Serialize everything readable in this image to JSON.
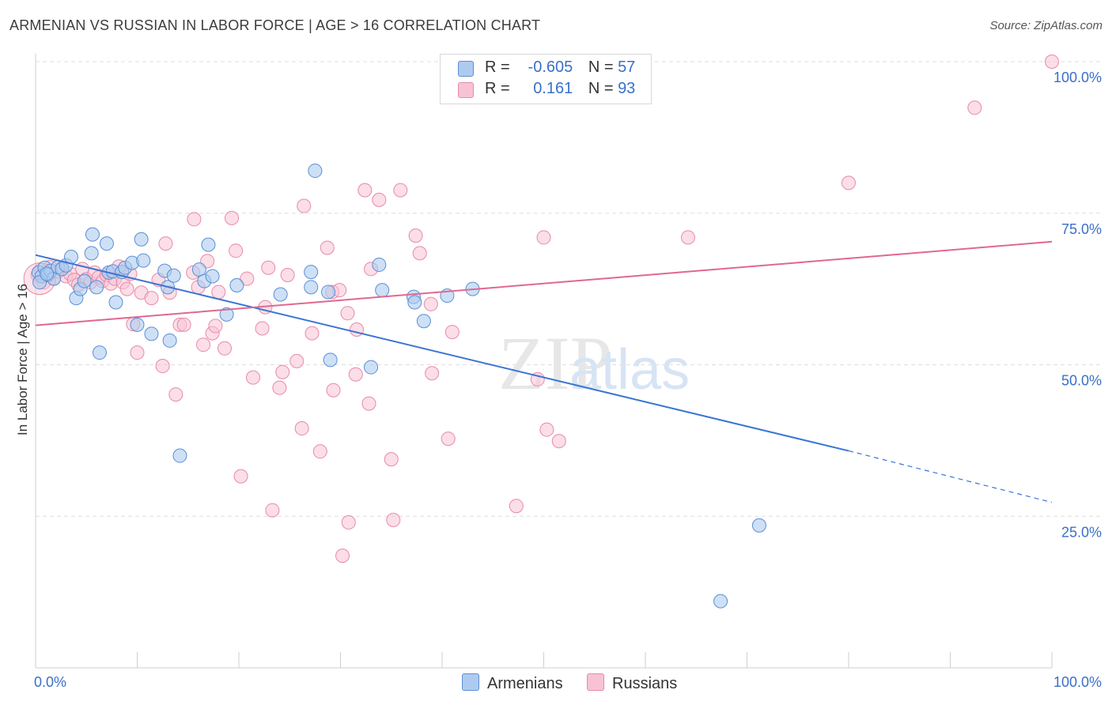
{
  "header": {
    "title": "ARMENIAN VS RUSSIAN IN LABOR FORCE | AGE > 16 CORRELATION CHART",
    "source": "Source: ZipAtlas.com"
  },
  "legend": {
    "rows": [
      {
        "r_label": "R =",
        "r_value": "-0.605",
        "n_label": "N =",
        "n_value": "57"
      },
      {
        "r_label": "R =",
        "r_value": "0.161",
        "n_label": "N =",
        "n_value": "93"
      }
    ]
  },
  "watermark": {
    "zip": "ZIP",
    "atlas": "atlas"
  },
  "colors": {
    "armenian_fill": "#aecbef",
    "armenian_stroke": "#5b8fd6",
    "armenian_line": "#3a75d4",
    "russian_fill": "#f7c3d4",
    "russian_stroke": "#e88aa8",
    "russian_line": "#e0688f",
    "tick_label": "#3a6fc9"
  },
  "chart_data": {
    "type": "scatter",
    "title": "ARMENIAN VS RUSSIAN IN LABOR FORCE | AGE > 16 CORRELATION CHART",
    "xlabel": "",
    "ylabel": "In Labor Force | Age > 16",
    "xlim": [
      0,
      100
    ],
    "ylim": [
      0,
      100
    ],
    "x_tick_labels": [
      "0.0%",
      "100.0%"
    ],
    "y_ticks": [
      25,
      50,
      75,
      100
    ],
    "y_tick_labels": [
      "25.0%",
      "50.0%",
      "75.0%",
      "100.0%"
    ],
    "grid": true,
    "legend_position": "top-center",
    "series": [
      {
        "name": "Armenians",
        "r": -0.605,
        "n": 57,
        "trend": {
          "x0": 0,
          "y0": 68.1,
          "x1": 80,
          "y1": 35.8,
          "dashed_to_x": 100,
          "dashed_to_y": 27.3
        },
        "points": [
          [
            0.3,
            65.2
          ],
          [
            0.6,
            64.6
          ],
          [
            0.9,
            66.0
          ],
          [
            1.2,
            64.8
          ],
          [
            1.5,
            65.5
          ],
          [
            1.8,
            64.2
          ],
          [
            2.2,
            66.1
          ],
          [
            2.6,
            65.8
          ],
          [
            3.0,
            66.4
          ],
          [
            3.5,
            67.8
          ],
          [
            4.0,
            61.0
          ],
          [
            4.4,
            62.5
          ],
          [
            4.8,
            63.8
          ],
          [
            5.5,
            68.4
          ],
          [
            5.6,
            71.5
          ],
          [
            6.0,
            62.8
          ],
          [
            6.3,
            52.0
          ],
          [
            7.0,
            70.0
          ],
          [
            7.2,
            65.2
          ],
          [
            7.6,
            65.4
          ],
          [
            7.9,
            60.3
          ],
          [
            8.5,
            65.3
          ],
          [
            8.8,
            66.0
          ],
          [
            9.5,
            66.8
          ],
          [
            10.0,
            56.6
          ],
          [
            10.4,
            70.7
          ],
          [
            10.6,
            67.2
          ],
          [
            11.4,
            55.1
          ],
          [
            12.7,
            65.5
          ],
          [
            13.0,
            62.8
          ],
          [
            13.2,
            54.0
          ],
          [
            13.6,
            64.7
          ],
          [
            14.2,
            35.0
          ],
          [
            16.1,
            65.7
          ],
          [
            16.6,
            63.8
          ],
          [
            17.0,
            69.8
          ],
          [
            17.4,
            64.6
          ],
          [
            18.8,
            58.3
          ],
          [
            19.8,
            63.1
          ],
          [
            24.1,
            61.6
          ],
          [
            27.1,
            65.3
          ],
          [
            27.1,
            62.8
          ],
          [
            27.5,
            82.0
          ],
          [
            28.8,
            62.0
          ],
          [
            29.0,
            50.8
          ],
          [
            33.0,
            49.6
          ],
          [
            33.8,
            66.5
          ],
          [
            34.1,
            62.3
          ],
          [
            37.2,
            61.2
          ],
          [
            37.3,
            60.3
          ],
          [
            38.2,
            57.2
          ],
          [
            40.5,
            61.4
          ],
          [
            43.0,
            62.5
          ],
          [
            71.2,
            23.5
          ],
          [
            67.4,
            11.0
          ],
          [
            0.4,
            63.6
          ],
          [
            1.1,
            65.0
          ]
        ]
      },
      {
        "name": "Russians",
        "r": 0.161,
        "n": 93,
        "trend": {
          "x0": 0,
          "y0": 56.5,
          "x1": 100,
          "y1": 70.3
        },
        "points": [
          [
            0.2,
            64.8
          ],
          [
            0.5,
            65.6
          ],
          [
            0.8,
            63.6
          ],
          [
            1.2,
            64.9
          ],
          [
            1.4,
            66.1
          ],
          [
            1.8,
            64.3
          ],
          [
            2.2,
            65.4
          ],
          [
            2.6,
            66.0
          ],
          [
            3.0,
            64.6
          ],
          [
            3.4,
            65.0
          ],
          [
            3.8,
            64.0
          ],
          [
            4.2,
            63.2
          ],
          [
            4.6,
            65.8
          ],
          [
            5.0,
            64.1
          ],
          [
            5.4,
            63.6
          ],
          [
            5.8,
            65.2
          ],
          [
            6.2,
            64.4
          ],
          [
            6.6,
            63.8
          ],
          [
            7.0,
            64.8
          ],
          [
            7.4,
            63.4
          ],
          [
            7.8,
            64.2
          ],
          [
            8.2,
            66.2
          ],
          [
            8.6,
            63.6
          ],
          [
            9.0,
            62.5
          ],
          [
            9.3,
            65.0
          ],
          [
            9.6,
            56.7
          ],
          [
            10.0,
            52.0
          ],
          [
            10.4,
            61.9
          ],
          [
            11.4,
            61.0
          ],
          [
            12.1,
            64.0
          ],
          [
            12.5,
            49.8
          ],
          [
            12.8,
            70.0
          ],
          [
            13.2,
            61.9
          ],
          [
            13.8,
            45.1
          ],
          [
            14.2,
            56.6
          ],
          [
            14.6,
            56.6
          ],
          [
            15.5,
            65.2
          ],
          [
            15.6,
            74.0
          ],
          [
            16.0,
            62.8
          ],
          [
            16.5,
            53.3
          ],
          [
            16.9,
            67.1
          ],
          [
            17.4,
            55.2
          ],
          [
            17.7,
            56.4
          ],
          [
            18.0,
            62.0
          ],
          [
            18.6,
            52.7
          ],
          [
            19.3,
            74.2
          ],
          [
            19.7,
            68.8
          ],
          [
            20.2,
            31.6
          ],
          [
            20.8,
            64.2
          ],
          [
            21.4,
            47.9
          ],
          [
            22.3,
            56.0
          ],
          [
            22.6,
            59.5
          ],
          [
            22.9,
            66.0
          ],
          [
            23.3,
            26.0
          ],
          [
            24.0,
            46.2
          ],
          [
            24.3,
            48.8
          ],
          [
            24.8,
            64.8
          ],
          [
            25.7,
            50.6
          ],
          [
            26.2,
            39.5
          ],
          [
            26.4,
            76.2
          ],
          [
            27.2,
            55.2
          ],
          [
            28.0,
            35.7
          ],
          [
            28.7,
            69.3
          ],
          [
            29.2,
            62.0
          ],
          [
            29.3,
            45.8
          ],
          [
            29.9,
            62.3
          ],
          [
            30.2,
            18.5
          ],
          [
            30.7,
            58.5
          ],
          [
            30.8,
            24.0
          ],
          [
            31.5,
            48.4
          ],
          [
            31.6,
            55.8
          ],
          [
            32.4,
            78.8
          ],
          [
            32.8,
            43.6
          ],
          [
            33.0,
            65.8
          ],
          [
            33.8,
            77.2
          ],
          [
            35.0,
            34.4
          ],
          [
            35.2,
            24.4
          ],
          [
            35.9,
            78.8
          ],
          [
            37.4,
            71.3
          ],
          [
            37.8,
            68.4
          ],
          [
            38.9,
            60.0
          ],
          [
            39.0,
            48.6
          ],
          [
            40.6,
            37.8
          ],
          [
            41.0,
            55.4
          ],
          [
            47.3,
            26.7
          ],
          [
            49.4,
            47.6
          ],
          [
            50.0,
            71.0
          ],
          [
            50.3,
            39.3
          ],
          [
            51.5,
            37.4
          ],
          [
            64.2,
            71.0
          ],
          [
            80.0,
            80.0
          ],
          [
            92.4,
            92.4
          ],
          [
            100.0,
            100.0
          ]
        ]
      }
    ]
  },
  "bottom_legend": {
    "armenians": "Armenians",
    "russians": "Russians"
  }
}
